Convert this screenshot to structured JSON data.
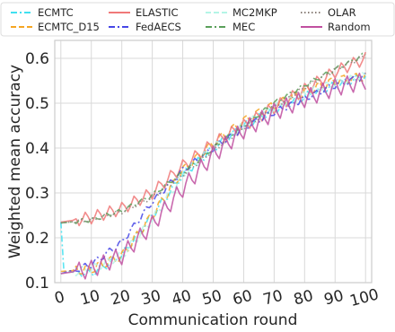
{
  "chart_data": {
    "type": "line",
    "title": "",
    "xlabel": "Communication round",
    "ylabel": "Weighted mean accuracy",
    "xlim": [
      -2,
      102
    ],
    "ylim": [
      0.1,
      0.64
    ],
    "xticks": [
      0,
      10,
      20,
      30,
      40,
      50,
      60,
      70,
      80,
      90,
      100
    ],
    "xtick_labels": [
      "0",
      "10",
      "20",
      "30",
      "40",
      "50",
      "60",
      "70",
      "80",
      "90",
      "100"
    ],
    "yticks": [
      0.1,
      0.2,
      0.3,
      0.4,
      0.5,
      0.6
    ],
    "ytick_labels": [
      "0.1",
      "0.2",
      "0.3",
      "0.4",
      "0.5",
      "0.6"
    ],
    "grid": true,
    "legend_position": "top",
    "legend_columns": 4,
    "series": [
      {
        "name": "ECMTC",
        "color": "#40e0f0",
        "dash": "dashdot",
        "control_points": [
          [
            0,
            0.235
          ],
          [
            1,
            0.125
          ],
          [
            10,
            0.12
          ],
          [
            20,
            0.16
          ],
          [
            30,
            0.25
          ],
          [
            40,
            0.34
          ],
          [
            50,
            0.4
          ],
          [
            60,
            0.45
          ],
          [
            70,
            0.485
          ],
          [
            80,
            0.515
          ],
          [
            90,
            0.54
          ],
          [
            100,
            0.56
          ]
        ],
        "amplitude": 0.009
      },
      {
        "name": "ECMTC_D15",
        "color": "#f5a623",
        "dash": "dashed",
        "control_points": [
          [
            0,
            0.125
          ],
          [
            10,
            0.13
          ],
          [
            20,
            0.16
          ],
          [
            30,
            0.25
          ],
          [
            40,
            0.35
          ],
          [
            50,
            0.41
          ],
          [
            60,
            0.46
          ],
          [
            70,
            0.495
          ],
          [
            80,
            0.525
          ],
          [
            90,
            0.55
          ],
          [
            100,
            0.56
          ]
        ],
        "amplitude": 0.012
      },
      {
        "name": "ELASTIC",
        "color": "#f07878",
        "dash": "solid",
        "control_points": [
          [
            0,
            0.235
          ],
          [
            10,
            0.245
          ],
          [
            20,
            0.265
          ],
          [
            30,
            0.3
          ],
          [
            40,
            0.36
          ],
          [
            50,
            0.41
          ],
          [
            60,
            0.45
          ],
          [
            70,
            0.49
          ],
          [
            80,
            0.53
          ],
          [
            90,
            0.57
          ],
          [
            100,
            0.6
          ]
        ],
        "amplitude": 0.014
      },
      {
        "name": "FedAECS",
        "color": "#4646e6",
        "dash": "dashdot",
        "control_points": [
          [
            0,
            0.12
          ],
          [
            10,
            0.14
          ],
          [
            20,
            0.19
          ],
          [
            30,
            0.28
          ],
          [
            40,
            0.35
          ],
          [
            50,
            0.4
          ],
          [
            60,
            0.445
          ],
          [
            70,
            0.48
          ],
          [
            80,
            0.51
          ],
          [
            90,
            0.54
          ],
          [
            100,
            0.56
          ]
        ],
        "amplitude": 0.008
      },
      {
        "name": "MC2MKP",
        "color": "#b4f5e6",
        "dash": "dashed",
        "control_points": [
          [
            0,
            0.12
          ],
          [
            10,
            0.13
          ],
          [
            20,
            0.16
          ],
          [
            30,
            0.24
          ],
          [
            40,
            0.34
          ],
          [
            50,
            0.4
          ],
          [
            60,
            0.45
          ],
          [
            70,
            0.49
          ],
          [
            80,
            0.52
          ],
          [
            90,
            0.545
          ],
          [
            100,
            0.56
          ]
        ],
        "amplitude": 0.01
      },
      {
        "name": "MEC",
        "color": "#5aa05a",
        "dash": "dashdot",
        "control_points": [
          [
            0,
            0.233
          ],
          [
            10,
            0.24
          ],
          [
            20,
            0.26
          ],
          [
            30,
            0.295
          ],
          [
            40,
            0.345
          ],
          [
            50,
            0.4
          ],
          [
            60,
            0.45
          ],
          [
            70,
            0.5
          ],
          [
            80,
            0.54
          ],
          [
            90,
            0.575
          ],
          [
            100,
            0.61
          ]
        ],
        "amplitude": 0.005
      },
      {
        "name": "OLAR",
        "color": "#8a7f78",
        "dash": "dotted",
        "control_points": [
          [
            0,
            0.233
          ],
          [
            10,
            0.24
          ],
          [
            20,
            0.258
          ],
          [
            30,
            0.29
          ],
          [
            40,
            0.34
          ],
          [
            50,
            0.395
          ],
          [
            60,
            0.445
          ],
          [
            70,
            0.49
          ],
          [
            80,
            0.535
          ],
          [
            90,
            0.575
          ],
          [
            100,
            0.605
          ]
        ],
        "amplitude": 0.005
      },
      {
        "name": "Random",
        "color": "#c04fa0",
        "dash": "solid",
        "control_points": [
          [
            0,
            0.12
          ],
          [
            10,
            0.13
          ],
          [
            20,
            0.16
          ],
          [
            30,
            0.23
          ],
          [
            40,
            0.31
          ],
          [
            50,
            0.385
          ],
          [
            60,
            0.44
          ],
          [
            70,
            0.48
          ],
          [
            80,
            0.51
          ],
          [
            90,
            0.535
          ],
          [
            100,
            0.55
          ]
        ],
        "amplitude": 0.02
      }
    ]
  }
}
